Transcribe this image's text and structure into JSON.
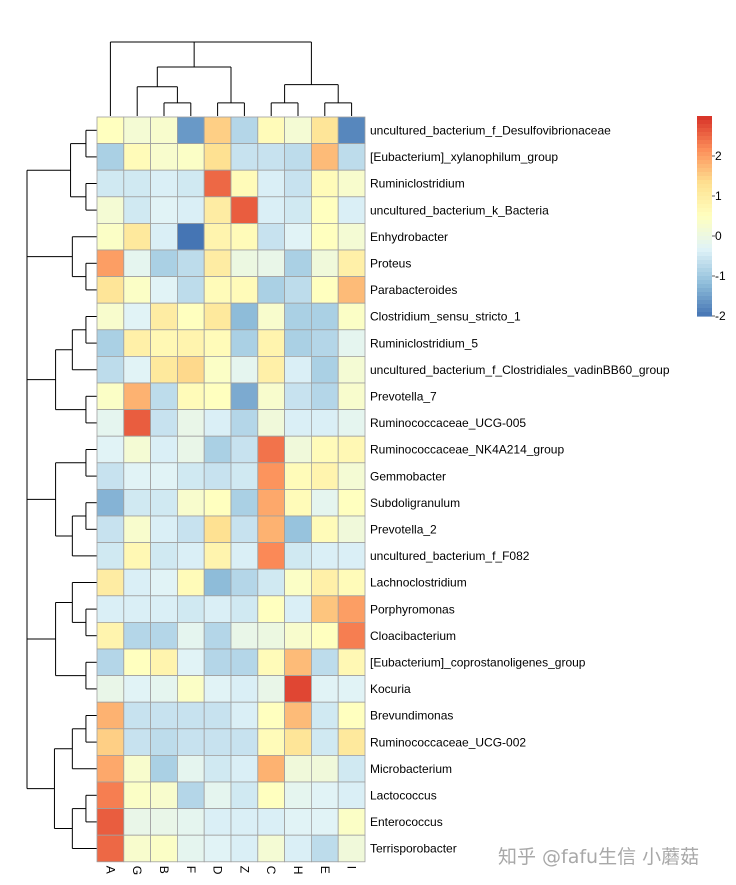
{
  "chart_data": {
    "type": "heatmap",
    "title": "",
    "columns": [
      "A",
      "G",
      "B",
      "F",
      "D",
      "Z",
      "C",
      "H",
      "E",
      "I"
    ],
    "rows": [
      "uncultured_bacterium_f_Desulfovibrionaceae",
      "[Eubacterium]_xylanophilum_group",
      "Ruminiclostridium",
      "uncultured_bacterium_k_Bacteria",
      "Enhydrobacter",
      "Proteus",
      "Parabacteroides",
      "Clostridium_sensu_stricto_1",
      "Ruminiclostridium_5",
      "uncultured_bacterium_f_Clostridiales_vadinBB60_group",
      "Prevotella_7",
      "Ruminococcaceae_UCG-005",
      "Ruminococcaceae_NK4A214_group",
      "Gemmobacter",
      "Subdoligranulum",
      "Prevotella_2",
      "uncultured_bacterium_f_F082",
      "Lachnoclostridium",
      "Porphyromonas",
      "Cloacibacterium",
      "[Eubacterium]_coprostanoligenes_group",
      "Kocuria",
      "Brevundimonas",
      "Ruminococcaceae_UCG-002",
      "Microbacterium",
      "Lactococcus",
      "Enterococcus",
      "Terrisporobacter"
    ],
    "values": [
      [
        0.5,
        0.2,
        0.3,
        -1.6,
        1.5,
        -0.8,
        0.6,
        0.2,
        1.2,
        -1.8
      ],
      [
        -0.9,
        0.6,
        0.3,
        0.4,
        1.3,
        -0.6,
        -0.6,
        -0.7,
        1.7,
        -0.7
      ],
      [
        -0.5,
        -0.5,
        -0.4,
        -0.5,
        2.5,
        0.6,
        -0.4,
        -0.6,
        0.6,
        0.3
      ],
      [
        0.2,
        -0.5,
        -0.3,
        -0.4,
        1.0,
        2.6,
        -0.4,
        -0.5,
        0.5,
        -0.4
      ],
      [
        0.4,
        1.1,
        -0.4,
        -2.0,
        0.8,
        0.6,
        -0.6,
        -0.3,
        0.5,
        0.2
      ],
      [
        2.0,
        -0.2,
        -0.9,
        -0.7,
        1.0,
        0.0,
        -0.1,
        -0.9,
        0.1,
        0.9
      ],
      [
        1.2,
        0.4,
        -0.3,
        -0.7,
        0.6,
        0.6,
        -0.9,
        -0.7,
        0.5,
        1.7
      ],
      [
        0.3,
        -0.3,
        1.0,
        0.5,
        1.1,
        -1.2,
        0.3,
        -0.9,
        -0.9,
        0.4
      ],
      [
        -0.9,
        0.9,
        0.7,
        0.8,
        0.6,
        -0.9,
        0.8,
        -0.9,
        -0.8,
        -0.2
      ],
      [
        -0.7,
        -0.3,
        1.1,
        1.4,
        0.4,
        -0.2,
        0.9,
        -0.4,
        -0.9,
        0.2
      ],
      [
        0.4,
        1.8,
        -0.7,
        0.6,
        0.5,
        -1.4,
        0.3,
        -0.6,
        -0.8,
        0.3
      ],
      [
        -0.2,
        2.6,
        -0.6,
        -0.1,
        -0.4,
        -0.8,
        0.1,
        -0.4,
        -0.4,
        -0.2
      ],
      [
        -0.3,
        0.2,
        -0.4,
        -0.1,
        -0.9,
        -0.6,
        2.4,
        0.1,
        0.6,
        0.7
      ],
      [
        -0.6,
        -0.3,
        -0.3,
        -0.5,
        -0.6,
        -0.5,
        2.1,
        0.6,
        0.8,
        0.2
      ],
      [
        -1.3,
        -0.5,
        -0.5,
        0.3,
        0.5,
        -0.9,
        1.9,
        0.6,
        -0.2,
        0.5
      ],
      [
        -0.6,
        0.3,
        -0.4,
        -0.6,
        1.3,
        -0.6,
        1.8,
        -1.1,
        0.6,
        0.1
      ],
      [
        -0.5,
        0.7,
        -0.5,
        -0.4,
        0.8,
        -0.4,
        2.2,
        -0.5,
        -0.4,
        -0.4
      ],
      [
        1.0,
        -0.4,
        -0.3,
        0.6,
        -1.2,
        -0.8,
        -0.5,
        0.4,
        0.9,
        0.6
      ],
      [
        -0.4,
        -0.4,
        -0.4,
        -0.5,
        -0.4,
        -0.5,
        0.5,
        -0.4,
        1.6,
        2.0
      ],
      [
        0.8,
        -0.8,
        -0.8,
        -0.2,
        -0.8,
        -0.1,
        0.0,
        0.3,
        0.5,
        2.3
      ],
      [
        -0.8,
        0.5,
        0.8,
        -0.3,
        -0.8,
        -0.8,
        0.6,
        1.7,
        -0.7,
        0.7
      ],
      [
        -0.1,
        -0.3,
        -0.2,
        0.4,
        -0.3,
        -0.4,
        -0.1,
        2.8,
        -0.3,
        -0.3
      ],
      [
        1.8,
        -0.6,
        -0.6,
        -0.6,
        -0.6,
        -0.4,
        0.5,
        1.7,
        -0.5,
        0.5
      ],
      [
        1.5,
        -0.6,
        -0.7,
        -0.6,
        -0.6,
        -0.6,
        0.6,
        1.2,
        -0.5,
        1.1
      ],
      [
        1.9,
        0.3,
        -0.9,
        -0.2,
        -0.5,
        -0.4,
        1.8,
        0.1,
        0.1,
        -0.5
      ],
      [
        2.3,
        0.4,
        0.3,
        -0.8,
        -0.2,
        -0.5,
        0.5,
        -0.2,
        -0.3,
        -0.4
      ],
      [
        2.6,
        -0.1,
        -0.1,
        -0.2,
        -0.4,
        -0.4,
        -0.4,
        -0.3,
        -0.3,
        0.4
      ],
      [
        2.5,
        0.3,
        0.4,
        -0.2,
        -0.3,
        -0.4,
        0.2,
        -0.4,
        -0.7,
        0.1
      ]
    ],
    "colorscale": {
      "range": [
        -2,
        3
      ],
      "stops": [
        "#4575b4",
        "#91bfdb",
        "#e0f3f8",
        "#ffffbf",
        "#fee090",
        "#fc8d59",
        "#d73027"
      ],
      "ticks": [
        2,
        1,
        0,
        -1,
        -2
      ],
      "tick_labels": [
        "2",
        "1",
        "0",
        "-1",
        "-2"
      ]
    },
    "grid_color": "#a0a0a0",
    "row_dendrogram": [
      [
        [
          0,
          1
        ],
        [
          2,
          3
        ]
      ],
      [
        4,
        [
          5,
          6
        ]
      ],
      [
        [
          [
            7,
            8
          ],
          9
        ],
        [
          10,
          11
        ]
      ],
      [
        [
          12,
          13
        ],
        [
          [
            14,
            15
          ],
          16
        ]
      ],
      [
        [
          17,
          [
            18,
            19
          ]
        ],
        [
          20,
          21
        ]
      ],
      [
        [
          [
            22,
            23
          ],
          24
        ],
        [
          [
            25,
            26
          ],
          27
        ]
      ]
    ],
    "col_dendrogram": [
      0,
      [
        [
          1,
          [
            2,
            3
          ]
        ],
        [
          4,
          5
        ]
      ],
      [
        [
          6,
          7
        ],
        [
          8,
          9
        ]
      ]
    ]
  },
  "watermark": "知乎 @fafu生信 小蘑菇"
}
